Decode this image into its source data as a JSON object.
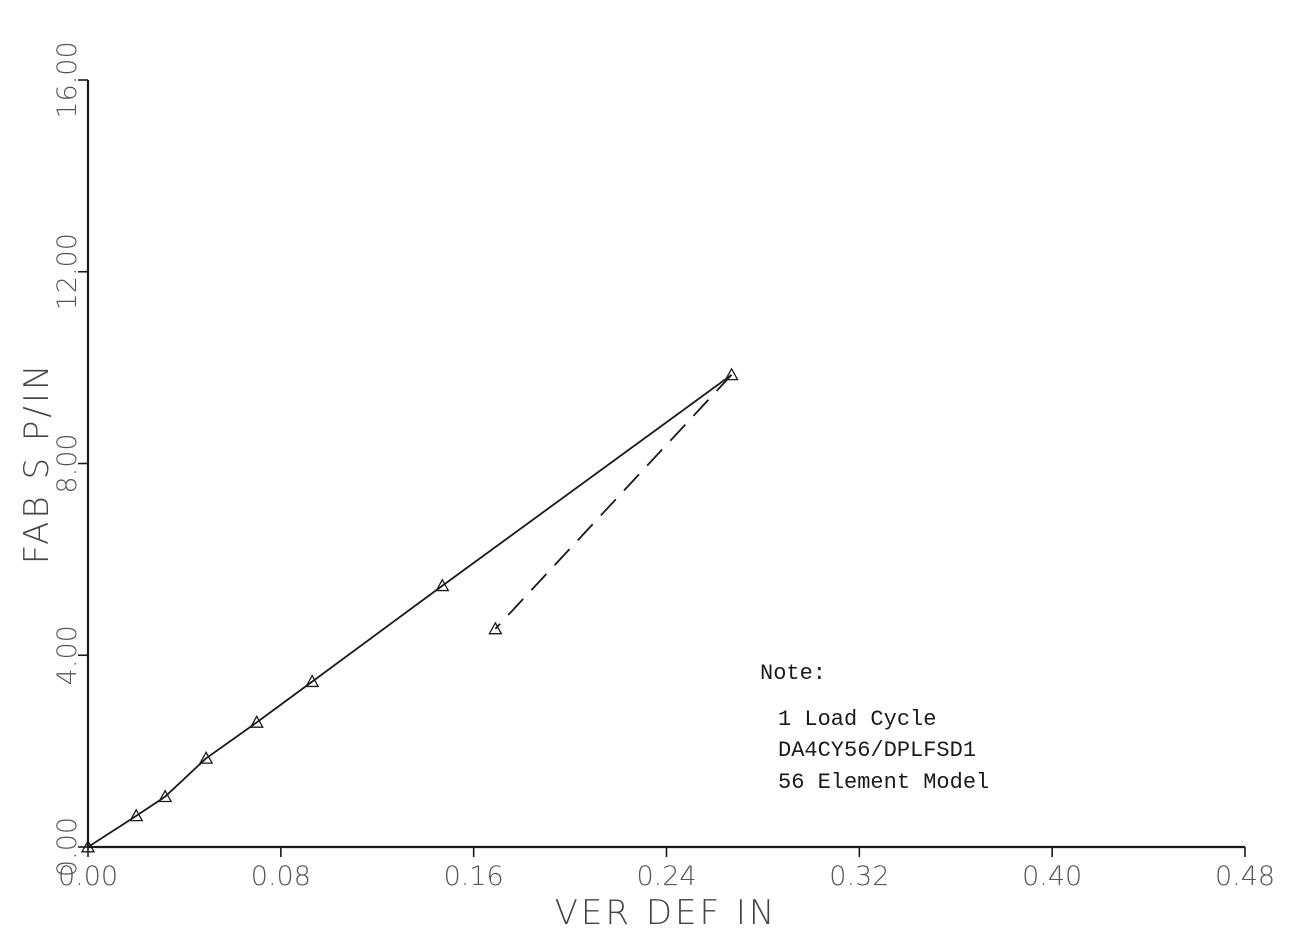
{
  "chart_data": {
    "type": "line",
    "xlabel": "VER DEF IN",
    "ylabel": "FAB S P/IN",
    "xlim": [
      0,
      0.48
    ],
    "ylim": [
      0,
      16
    ],
    "x_ticks": [
      0.0,
      0.08,
      0.16,
      0.24,
      0.32,
      0.4,
      0.48
    ],
    "x_tick_labels": [
      "0.00",
      "0.08",
      "0.16",
      "0.24",
      "0.32",
      "0.40",
      "0.48"
    ],
    "y_ticks": [
      0,
      4,
      8,
      12,
      16
    ],
    "y_tick_labels": [
      "0.00",
      "4.00",
      "8.00",
      "12.00",
      "16.00"
    ],
    "grid": false,
    "marker": "triangle",
    "series": [
      {
        "style": "solid",
        "points": [
          {
            "x": 0.0,
            "y": 0.0
          },
          {
            "x": 0.02,
            "y": 0.65
          },
          {
            "x": 0.032,
            "y": 1.05
          },
          {
            "x": 0.049,
            "y": 1.85
          },
          {
            "x": 0.07,
            "y": 2.6
          },
          {
            "x": 0.093,
            "y": 3.45
          },
          {
            "x": 0.147,
            "y": 5.45
          },
          {
            "x": 0.267,
            "y": 9.85
          }
        ]
      },
      {
        "style": "dashed",
        "points": [
          {
            "x": 0.267,
            "y": 9.85
          },
          {
            "x": 0.169,
            "y": 4.55
          }
        ]
      }
    ]
  },
  "note": {
    "title": "Note:",
    "lines": [
      "1 Load Cycle",
      "DA4CY56/DPLFSD1",
      "56 Element Model"
    ]
  }
}
